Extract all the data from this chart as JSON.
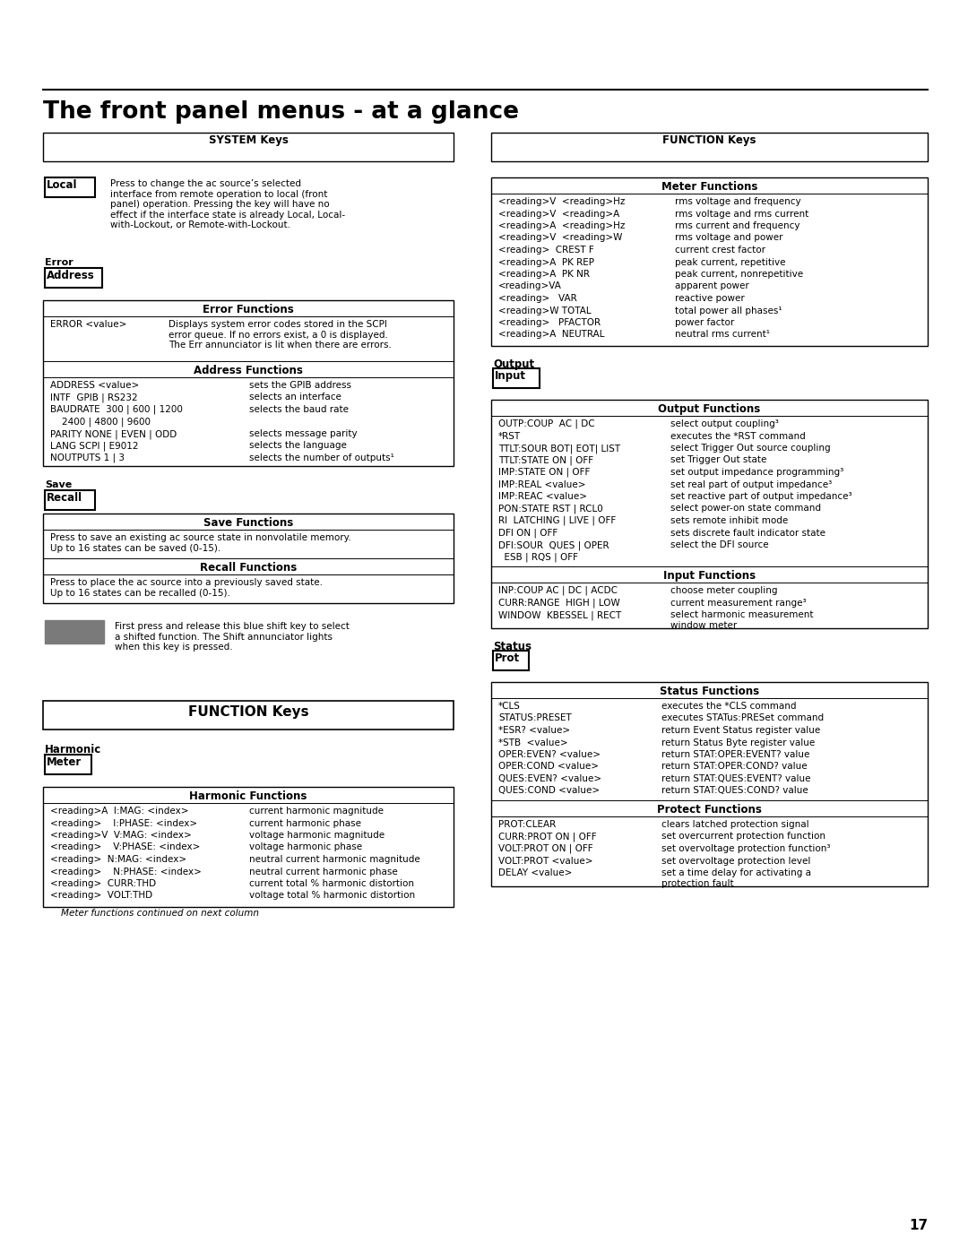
{
  "title": "The front panel menus - at a glance",
  "page_number": "17",
  "bg": "#ffffff",
  "left": {
    "sys_hdr": "SYSTEM Keys",
    "local_label": "Local",
    "local_text": "Press to change the ac source’s selected\ninterface from remote operation to local (front\npanel) operation. Pressing the key will have no\neffect if the interface state is already Local, Local-\nwith-Lockout, or Remote-with-Lockout.",
    "error_lbl": "Error",
    "addr_lbl": "Address",
    "err_hdr": "Error Functions",
    "err_rows": [
      [
        "ERROR <value>",
        "Displays system error codes stored in the SCPI\nerror queue. If no errors exist, a 0 is displayed.\nThe Err annunciator is lit when there are errors."
      ]
    ],
    "addr_hdr": "Address Functions",
    "addr_rows": [
      [
        "ADDRESS <value>",
        "sets the GPIB address"
      ],
      [
        "INTF  GPIB | RS232",
        "selects an interface"
      ],
      [
        "BAUDRATE  300 | 600 | 1200",
        "selects the baud rate"
      ],
      [
        "    2400 | 4800 | 9600",
        ""
      ],
      [
        "PARITY NONE | EVEN | ODD",
        "selects message parity"
      ],
      [
        "LANG SCPI | E9012",
        "selects the language"
      ],
      [
        "NOUTPUTS 1 | 3",
        "selects the number of outputs¹"
      ]
    ],
    "save_lbl": "Save",
    "recall_lbl": "Recall",
    "save_hdr": "Save Functions",
    "save_txt": "Press to save an existing ac source state in nonvolatile memory.\nUp to 16 states can be saved (0-15).",
    "recall_hdr": "Recall Functions",
    "recall_txt": "Press to place the ac source into a previously saved state.\nUp to 16 states can be recalled (0-15).",
    "shift_txt": "First press and release this blue shift key to select\na shifted function. The Shift annunciator lights\nwhen this key is pressed.",
    "fk_hdr": "FUNCTION Keys",
    "harm_lbl": "Harmonic",
    "meter_lbl": "Meter",
    "harm_hdr": "Harmonic Functions",
    "harm_rows": [
      [
        "<reading>A  I:MAG: <index>",
        "current harmonic magnitude"
      ],
      [
        "<reading>    I:PHASE: <index>",
        "current harmonic phase"
      ],
      [
        "<reading>V  V:MAG: <index>",
        "voltage harmonic magnitude"
      ],
      [
        "<reading>    V:PHASE: <index>",
        "voltage harmonic phase"
      ],
      [
        "<reading>  N:MAG: <index>",
        "neutral current harmonic magnitude"
      ],
      [
        "<reading>    N:PHASE: <index>",
        "neutral current harmonic phase"
      ],
      [
        "<reading>  CURR:THD",
        "current total % harmonic distortion"
      ],
      [
        "<reading>  VOLT:THD",
        "voltage total % harmonic distortion"
      ]
    ],
    "meter_note": "Meter functions continued on next column"
  },
  "right": {
    "fk_hdr": "FUNCTION Keys",
    "meter_hdr": "Meter Functions",
    "meter_rows": [
      [
        "<reading>V  <reading>Hz",
        "rms voltage and frequency"
      ],
      [
        "<reading>V  <reading>A",
        "rms voltage and rms current"
      ],
      [
        "<reading>A  <reading>Hz",
        "rms current and frequency"
      ],
      [
        "<reading>V  <reading>W",
        "rms voltage and power"
      ],
      [
        "<reading>  CREST F",
        "current crest factor"
      ],
      [
        "<reading>A  PK REP",
        "peak current, repetitive"
      ],
      [
        "<reading>A  PK NR",
        "peak current, nonrepetitive"
      ],
      [
        "<reading>VA",
        "apparent power"
      ],
      [
        "<reading>   VAR",
        "reactive power"
      ],
      [
        "<reading>W TOTAL",
        "total power all phases¹"
      ],
      [
        "<reading>   PFACTOR",
        "power factor"
      ],
      [
        "<reading>A  NEUTRAL",
        "neutral rms current¹"
      ]
    ],
    "output_lbl": "Output",
    "input_lbl": "Input",
    "out_hdr": "Output Functions",
    "out_rows": [
      [
        "OUTP:COUP  AC | DC",
        "select output coupling³"
      ],
      [
        "*RST",
        "executes the *RST command"
      ],
      [
        "TTLT:SOUR BOT| EOT| LIST",
        "select Trigger Out source coupling"
      ],
      [
        "TTLT:STATE ON | OFF",
        "set Trigger Out state"
      ],
      [
        "IMP:STATE ON | OFF",
        "set output impedance programming³"
      ],
      [
        "IMP:REAL <value>",
        "set real part of output impedance³"
      ],
      [
        "IMP:REAC <value>",
        "set reactive part of output impedance³"
      ],
      [
        "PON:STATE RST | RCL0",
        "select power-on state command"
      ],
      [
        "RI  LATCHING | LIVE | OFF",
        "sets remote inhibit mode"
      ],
      [
        "DFI ON | OFF",
        "sets discrete fault indicator state"
      ],
      [
        "DFI:SOUR  QUES | OPER",
        "select the DFI source"
      ],
      [
        "  ESB | RQS | OFF",
        ""
      ]
    ],
    "inp_hdr": "Input Functions",
    "inp_rows": [
      [
        "INP:COUP AC | DC | ACDC",
        "choose meter coupling"
      ],
      [
        "CURR:RANGE  HIGH | LOW",
        "current measurement range³"
      ],
      [
        "WINDOW  KBESSEL | RECT",
        "select harmonic measurement\nwindow meter"
      ]
    ],
    "status_lbl": "Status",
    "prot_lbl": "Prot",
    "stat_hdr": "Status Functions",
    "stat_rows": [
      [
        "*CLS",
        "executes the *CLS command"
      ],
      [
        "STATUS:PRESET",
        "executes STATus:PRESet command"
      ],
      [
        "*ESR? <value>",
        "return Event Status register value"
      ],
      [
        "*STB  <value>",
        "return Status Byte register value"
      ],
      [
        "OPER:EVEN? <value>",
        "return STAT:OPER:EVENT? value"
      ],
      [
        "OPER:COND <value>",
        "return STAT:OPER:COND? value"
      ],
      [
        "QUES:EVEN? <value>",
        "return STAT:QUES:EVENT? value"
      ],
      [
        "QUES:COND <value>",
        "return STAT:QUES:COND? value"
      ]
    ],
    "prot_hdr": "Protect Functions",
    "prot_rows": [
      [
        "PROT:CLEAR",
        "clears latched protection signal"
      ],
      [
        "CURR:PROT ON | OFF",
        "set overcurrent protection function"
      ],
      [
        "VOLT:PROT ON | OFF",
        "set overvoltage protection function³"
      ],
      [
        "VOLT:PROT <value>",
        "set overvoltage protection level"
      ],
      [
        "DELAY <value>",
        "set a time delay for activating a\nprotection fault"
      ]
    ]
  }
}
